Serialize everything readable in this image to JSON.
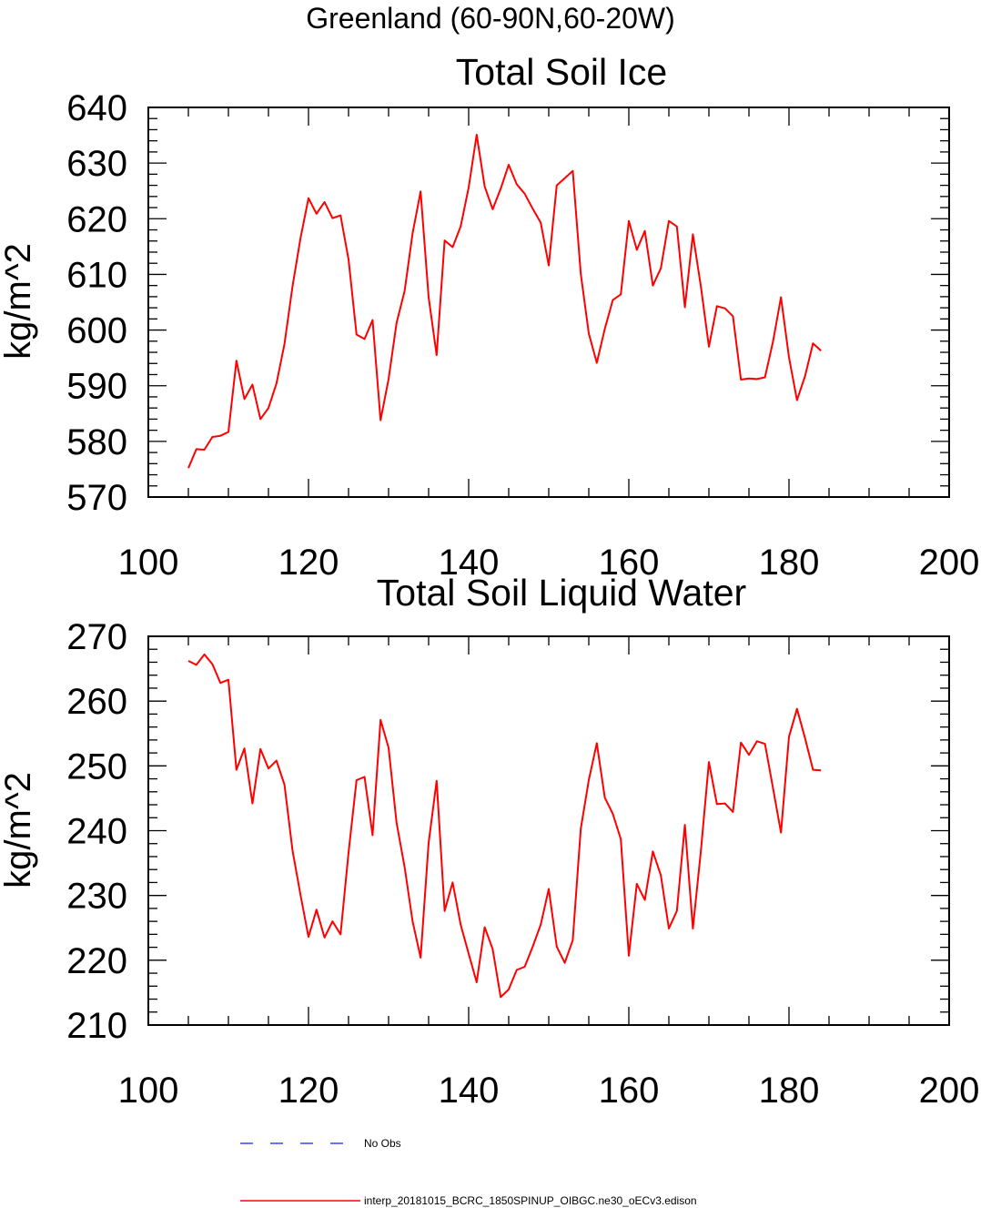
{
  "suptitle": "Greenland (60-90N,60-20W)",
  "legend": {
    "entries": [
      {
        "label": "No Obs",
        "color": "#4040ff",
        "style": "dashed"
      },
      {
        "label": "interp_20181015_BCRC_1850SPINUP_OIBGC.ne30_oECv3.edison",
        "color": "#ff0000",
        "style": "solid"
      }
    ]
  },
  "chart_data": [
    {
      "type": "line",
      "title": "Total Soil Ice",
      "xlabel": "",
      "ylabel": "kg/m^2",
      "xlim": [
        100,
        200
      ],
      "ylim": [
        570,
        640
      ],
      "xticks": [
        100,
        120,
        140,
        160,
        180,
        200
      ],
      "yticks": [
        570,
        580,
        590,
        600,
        610,
        620,
        630,
        640
      ],
      "grid": false,
      "series": [
        {
          "color": "#ff0000",
          "x": [
            105,
            106,
            107,
            108,
            109,
            110,
            111,
            112,
            113,
            114,
            115,
            116,
            117,
            118,
            119,
            120,
            121,
            122,
            123,
            124,
            125,
            126,
            127,
            128,
            129,
            130,
            131,
            132,
            133,
            134,
            135,
            136,
            137,
            138,
            139,
            140,
            141,
            142,
            143,
            144,
            145,
            146,
            147,
            148,
            149,
            150,
            151,
            152,
            153,
            154,
            155,
            156,
            157,
            158,
            159,
            160,
            161,
            162,
            163,
            164,
            165,
            166,
            167,
            168,
            169,
            170,
            171,
            172,
            173,
            174,
            175,
            176,
            177,
            178,
            179,
            180,
            181,
            182,
            183,
            184
          ],
          "values": [
            575.2,
            578.6,
            578.5,
            580.8,
            581.0,
            581.7,
            594.5,
            587.6,
            590.2,
            584.0,
            586.0,
            590.4,
            597.5,
            607.8,
            616.5,
            623.7,
            620.9,
            623.0,
            620.1,
            620.6,
            612.7,
            599.2,
            598.4,
            601.8,
            583.8,
            591.2,
            601.3,
            607.0,
            617.4,
            624.9,
            605.9,
            595.5,
            616.1,
            614.9,
            618.6,
            625.6,
            635.1,
            625.8,
            621.7,
            625.4,
            629.7,
            626.2,
            624.5,
            621.8,
            619.3,
            611.6,
            626.0,
            627.3,
            628.6,
            610.1,
            599.4,
            594.1,
            600.2,
            605.4,
            606.4,
            619.6,
            614.4,
            617.8,
            608.0,
            611.1,
            619.6,
            618.6,
            604.1,
            617.2,
            607.8,
            597.0,
            604.3,
            603.9,
            602.5,
            591.1,
            591.3,
            591.2,
            591.5,
            597.9,
            605.9,
            595.1,
            587.4,
            591.7,
            597.6,
            596.3
          ]
        }
      ]
    },
    {
      "type": "line",
      "title": "Total Soil Liquid Water",
      "xlabel": "",
      "ylabel": "kg/m^2",
      "xlim": [
        100,
        200
      ],
      "ylim": [
        210,
        270
      ],
      "xticks": [
        100,
        120,
        140,
        160,
        180,
        200
      ],
      "yticks": [
        210,
        220,
        230,
        240,
        250,
        260,
        270
      ],
      "grid": false,
      "series": [
        {
          "color": "#ff0000",
          "x": [
            105,
            106,
            107,
            108,
            109,
            110,
            111,
            112,
            113,
            114,
            115,
            116,
            117,
            118,
            119,
            120,
            121,
            122,
            123,
            124,
            125,
            126,
            127,
            128,
            129,
            130,
            131,
            132,
            133,
            134,
            135,
            136,
            137,
            138,
            139,
            140,
            141,
            142,
            143,
            144,
            145,
            146,
            147,
            148,
            149,
            150,
            151,
            152,
            153,
            154,
            155,
            156,
            157,
            158,
            159,
            160,
            161,
            162,
            163,
            164,
            165,
            166,
            167,
            168,
            169,
            170,
            171,
            172,
            173,
            174,
            175,
            176,
            177,
            178,
            179,
            180,
            181,
            182,
            183,
            184
          ],
          "values": [
            266.2,
            265.6,
            267.2,
            265.7,
            262.8,
            263.3,
            249.4,
            252.7,
            244.2,
            252.6,
            249.6,
            250.8,
            247.1,
            237.0,
            230.1,
            223.6,
            227.8,
            223.5,
            226.0,
            224.0,
            236.6,
            247.8,
            248.3,
            239.3,
            257.1,
            252.8,
            241.2,
            234.4,
            226.0,
            220.4,
            238.1,
            247.7,
            227.6,
            232.0,
            225.5,
            221.0,
            216.6,
            225.1,
            221.7,
            214.3,
            215.5,
            218.5,
            219.0,
            222.1,
            225.5,
            231.0,
            222.1,
            219.6,
            223.1,
            240.3,
            247.8,
            253.5,
            245.1,
            242.6,
            238.7,
            220.7,
            231.8,
            229.3,
            236.8,
            233.1,
            224.9,
            227.6,
            240.9,
            224.9,
            236.9,
            250.6,
            244.1,
            244.2,
            242.9,
            253.6,
            251.7,
            253.8,
            253.4,
            246.6,
            239.7,
            254.5,
            258.8,
            254.3,
            249.4,
            249.3
          ]
        }
      ]
    }
  ]
}
